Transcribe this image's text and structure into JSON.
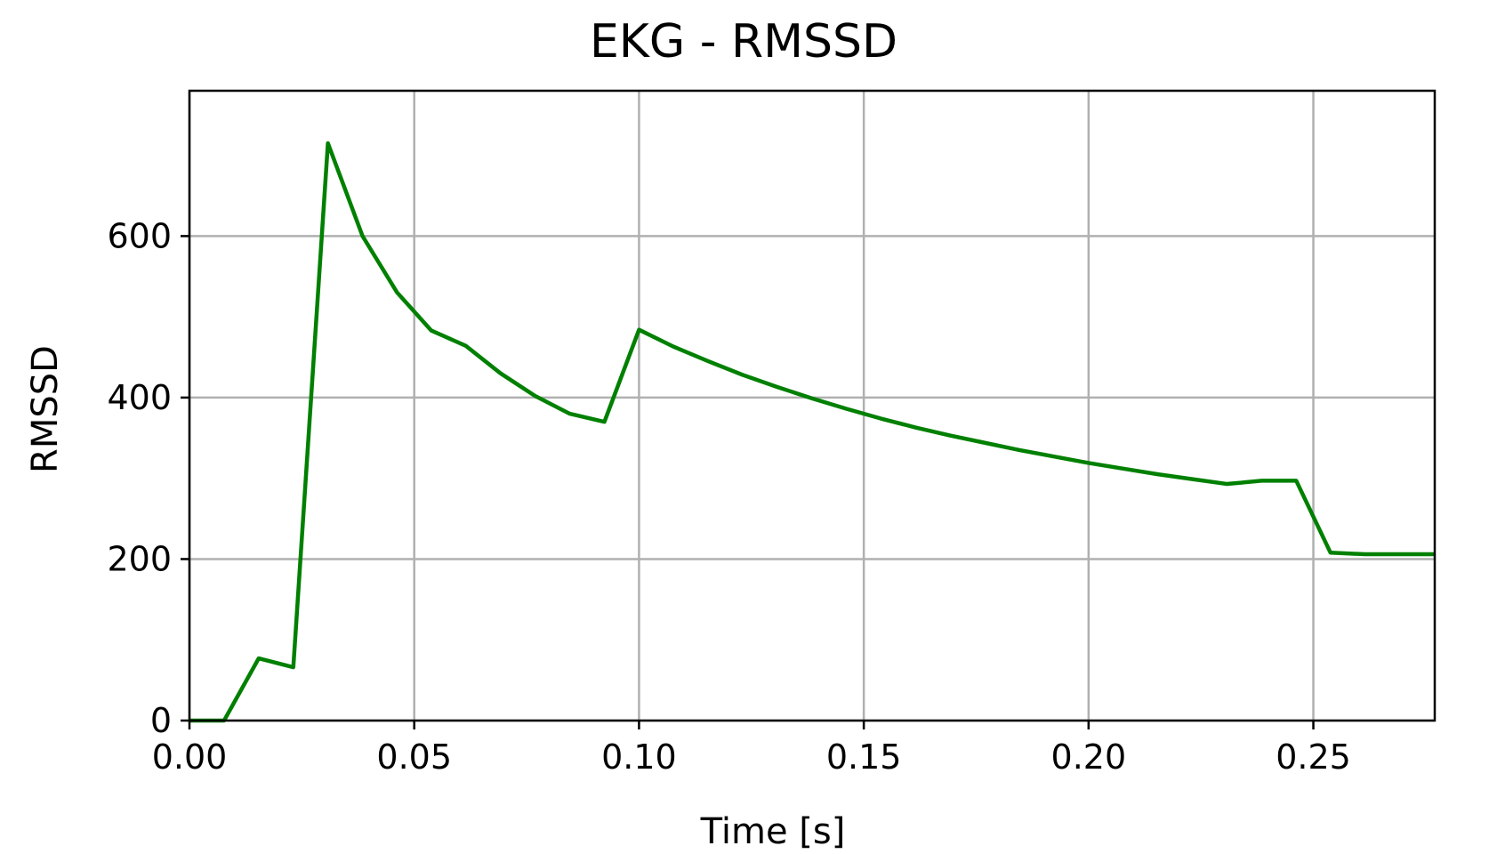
{
  "chart_data": {
    "type": "line",
    "title": "EKG - RMSSD",
    "xlabel": "Time [s]",
    "ylabel": "RMSSD",
    "xlim": [
      0.0,
      0.277
    ],
    "ylim": [
      0,
      780
    ],
    "xticks": [
      0.0,
      0.05,
      0.1,
      0.15,
      0.2,
      0.25
    ],
    "xtick_labels": [
      "0.00",
      "0.05",
      "0.10",
      "0.15",
      "0.20",
      "0.25"
    ],
    "yticks": [
      0,
      200,
      400,
      600
    ],
    "ytick_labels": [
      "0",
      "200",
      "400",
      "600"
    ],
    "grid": true,
    "legend": false,
    "series": [
      {
        "color": "#008000",
        "x": [
          0.0,
          0.0077,
          0.0154,
          0.0231,
          0.0308,
          0.0385,
          0.0462,
          0.0538,
          0.0615,
          0.0692,
          0.0769,
          0.0846,
          0.0923,
          0.1,
          0.1077,
          0.1154,
          0.1231,
          0.1308,
          0.1385,
          0.1462,
          0.1538,
          0.1615,
          0.1692,
          0.1769,
          0.1846,
          0.1923,
          0.2,
          0.2077,
          0.2154,
          0.2231,
          0.2308,
          0.2385,
          0.2462,
          0.2538,
          0.2615,
          0.2692,
          0.277
        ],
        "y": [
          0,
          0,
          77,
          66,
          715,
          600,
          530,
          483,
          464,
          430,
          402,
          380,
          370,
          484,
          463,
          445,
          428,
          413,
          399,
          386,
          374,
          363,
          353,
          344,
          335,
          327,
          319,
          312,
          305,
          299,
          293,
          297,
          297,
          208,
          206,
          206,
          206
        ]
      }
    ]
  }
}
